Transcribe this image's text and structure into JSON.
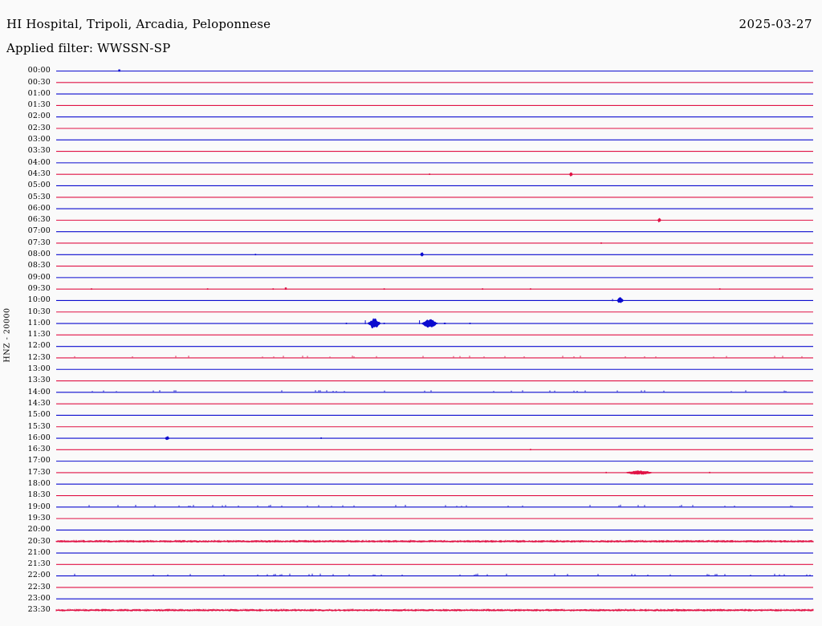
{
  "header": {
    "title": "HI Hospital, Tripoli, Arcadia, Peloponnese",
    "filter_label": "Applied filter: WWSSN-SP",
    "date": "2025-03-27"
  },
  "y_axis": {
    "station_label": "HNZ - 20000"
  },
  "chart_data": {
    "type": "line",
    "variant": "seismogram-helicorder",
    "title": "HI Hospital, Tripoli, Arcadia, Peloponnese",
    "date": "2025-03-27",
    "filter": "WWSSN-SP",
    "station_channel": "HNZ",
    "gain": "20000",
    "minutes_per_row": 30,
    "rows_count": 48,
    "legend_position": "none",
    "grid": false,
    "pen_colors": {
      "blue": "#0b0bcf",
      "red": "#e01245"
    },
    "rows": [
      {
        "t": "00:00",
        "pen": "blue",
        "noise": 0,
        "ev": [
          {
            "m": 2.5,
            "a": 2,
            "w": 3
          }
        ]
      },
      {
        "t": "00:30",
        "pen": "red",
        "noise": 0,
        "ev": []
      },
      {
        "t": "01:00",
        "pen": "blue",
        "noise": 0,
        "ev": []
      },
      {
        "t": "01:30",
        "pen": "red",
        "noise": 0,
        "ev": []
      },
      {
        "t": "02:00",
        "pen": "blue",
        "noise": 0,
        "ev": []
      },
      {
        "t": "02:30",
        "pen": "red",
        "noise": 0,
        "ev": []
      },
      {
        "t": "03:00",
        "pen": "blue",
        "noise": 0,
        "ev": []
      },
      {
        "t": "03:30",
        "pen": "red",
        "noise": 0,
        "ev": []
      },
      {
        "t": "04:00",
        "pen": "blue",
        "noise": 0,
        "ev": []
      },
      {
        "t": "04:30",
        "pen": "red",
        "noise": 0,
        "ev": [
          {
            "m": 14.8,
            "a": 1,
            "w": 2
          },
          {
            "m": 20.4,
            "a": 2,
            "w": 4
          }
        ]
      },
      {
        "t": "05:00",
        "pen": "blue",
        "noise": 0,
        "ev": []
      },
      {
        "t": "05:30",
        "pen": "red",
        "noise": 0,
        "ev": []
      },
      {
        "t": "06:00",
        "pen": "blue",
        "noise": 0,
        "ev": []
      },
      {
        "t": "06:30",
        "pen": "red",
        "noise": 0,
        "ev": [
          {
            "m": 23.9,
            "a": 2,
            "w": 4
          }
        ]
      },
      {
        "t": "07:00",
        "pen": "blue",
        "noise": 0,
        "ev": []
      },
      {
        "t": "07:30",
        "pen": "red",
        "noise": 0,
        "ev": [
          {
            "m": 21.6,
            "a": 1,
            "w": 2
          }
        ]
      },
      {
        "t": "08:00",
        "pen": "blue",
        "noise": 0,
        "ev": [
          {
            "m": 7.9,
            "a": 1,
            "w": 2
          },
          {
            "m": 14.5,
            "a": 2,
            "w": 4
          }
        ]
      },
      {
        "t": "08:30",
        "pen": "red",
        "noise": 0,
        "ev": []
      },
      {
        "t": "09:00",
        "pen": "blue",
        "noise": 0,
        "ev": []
      },
      {
        "t": "09:30",
        "pen": "red",
        "noise": 1,
        "ev": [
          {
            "m": 1.4,
            "a": 1,
            "w": 2
          },
          {
            "m": 6.0,
            "a": 1,
            "w": 2
          },
          {
            "m": 8.6,
            "a": 1,
            "w": 2
          },
          {
            "m": 9.1,
            "a": 2,
            "w": 3
          },
          {
            "m": 13.0,
            "a": 1,
            "w": 2
          },
          {
            "m": 16.9,
            "a": 1,
            "w": 2
          },
          {
            "m": 18.8,
            "a": 1,
            "w": 2
          },
          {
            "m": 26.3,
            "a": 1,
            "w": 2
          }
        ]
      },
      {
        "t": "10:00",
        "pen": "blue",
        "noise": 0,
        "ev": [
          {
            "m": 22.05,
            "a": 2,
            "w": 1
          },
          {
            "m": 22.35,
            "a": 3,
            "w": 8
          }
        ]
      },
      {
        "t": "10:30",
        "pen": "red",
        "noise": 0,
        "ev": []
      },
      {
        "t": "11:00",
        "pen": "blue",
        "noise": 1,
        "ev": [
          {
            "m": 11.5,
            "a": 1,
            "w": 2
          },
          {
            "m": 12.25,
            "a": 4,
            "w": 1
          },
          {
            "m": 12.6,
            "a": 5,
            "w": 16
          },
          {
            "m": 13.0,
            "a": 1,
            "w": 2
          },
          {
            "m": 14.4,
            "a": 4,
            "w": 1
          },
          {
            "m": 14.8,
            "a": 4,
            "w": 20
          },
          {
            "m": 15.4,
            "a": 1,
            "w": 3
          },
          {
            "m": 16.4,
            "a": 1,
            "w": 2
          }
        ]
      },
      {
        "t": "11:30",
        "pen": "red",
        "noise": 0,
        "ev": []
      },
      {
        "t": "12:00",
        "pen": "blue",
        "noise": 0,
        "ev": []
      },
      {
        "t": "12:30",
        "pen": "red",
        "noise": 2,
        "ev": []
      },
      {
        "t": "13:00",
        "pen": "blue",
        "noise": 0,
        "ev": []
      },
      {
        "t": "13:30",
        "pen": "red",
        "noise": 0,
        "ev": []
      },
      {
        "t": "14:00",
        "pen": "blue",
        "noise": 2,
        "ev": []
      },
      {
        "t": "14:30",
        "pen": "red",
        "noise": 0,
        "ev": []
      },
      {
        "t": "15:00",
        "pen": "blue",
        "noise": 0,
        "ev": []
      },
      {
        "t": "15:30",
        "pen": "red",
        "noise": 0,
        "ev": []
      },
      {
        "t": "16:00",
        "pen": "blue",
        "noise": 1,
        "ev": [
          {
            "m": 4.4,
            "a": 2,
            "w": 5
          },
          {
            "m": 10.5,
            "a": 1,
            "w": 2
          }
        ]
      },
      {
        "t": "16:30",
        "pen": "red",
        "noise": 0,
        "ev": [
          {
            "m": 18.8,
            "a": 1,
            "w": 2
          }
        ]
      },
      {
        "t": "17:00",
        "pen": "blue",
        "noise": 0,
        "ev": []
      },
      {
        "t": "17:30",
        "pen": "red",
        "noise": 1,
        "ev": [
          {
            "m": 21.8,
            "a": 1,
            "w": 2
          },
          {
            "m": 23.1,
            "a": 2,
            "w": 34
          },
          {
            "m": 25.9,
            "a": 1,
            "w": 2
          }
        ]
      },
      {
        "t": "18:00",
        "pen": "blue",
        "noise": 0,
        "ev": []
      },
      {
        "t": "18:30",
        "pen": "red",
        "noise": 0,
        "ev": []
      },
      {
        "t": "19:00",
        "pen": "blue",
        "noise": 2,
        "ev": []
      },
      {
        "t": "19:30",
        "pen": "red",
        "noise": 0,
        "ev": []
      },
      {
        "t": "20:00",
        "pen": "blue",
        "noise": 0,
        "ev": []
      },
      {
        "t": "20:30",
        "pen": "red",
        "noise": 3,
        "ev": []
      },
      {
        "t": "21:00",
        "pen": "blue",
        "noise": 0,
        "ev": []
      },
      {
        "t": "21:30",
        "pen": "red",
        "noise": 0,
        "ev": []
      },
      {
        "t": "22:00",
        "pen": "blue",
        "noise": 2,
        "ev": []
      },
      {
        "t": "22:30",
        "pen": "red",
        "noise": 0,
        "ev": []
      },
      {
        "t": "23:00",
        "pen": "blue",
        "noise": 0,
        "ev": []
      },
      {
        "t": "23:30",
        "pen": "red",
        "noise": 3,
        "ev": []
      }
    ]
  }
}
